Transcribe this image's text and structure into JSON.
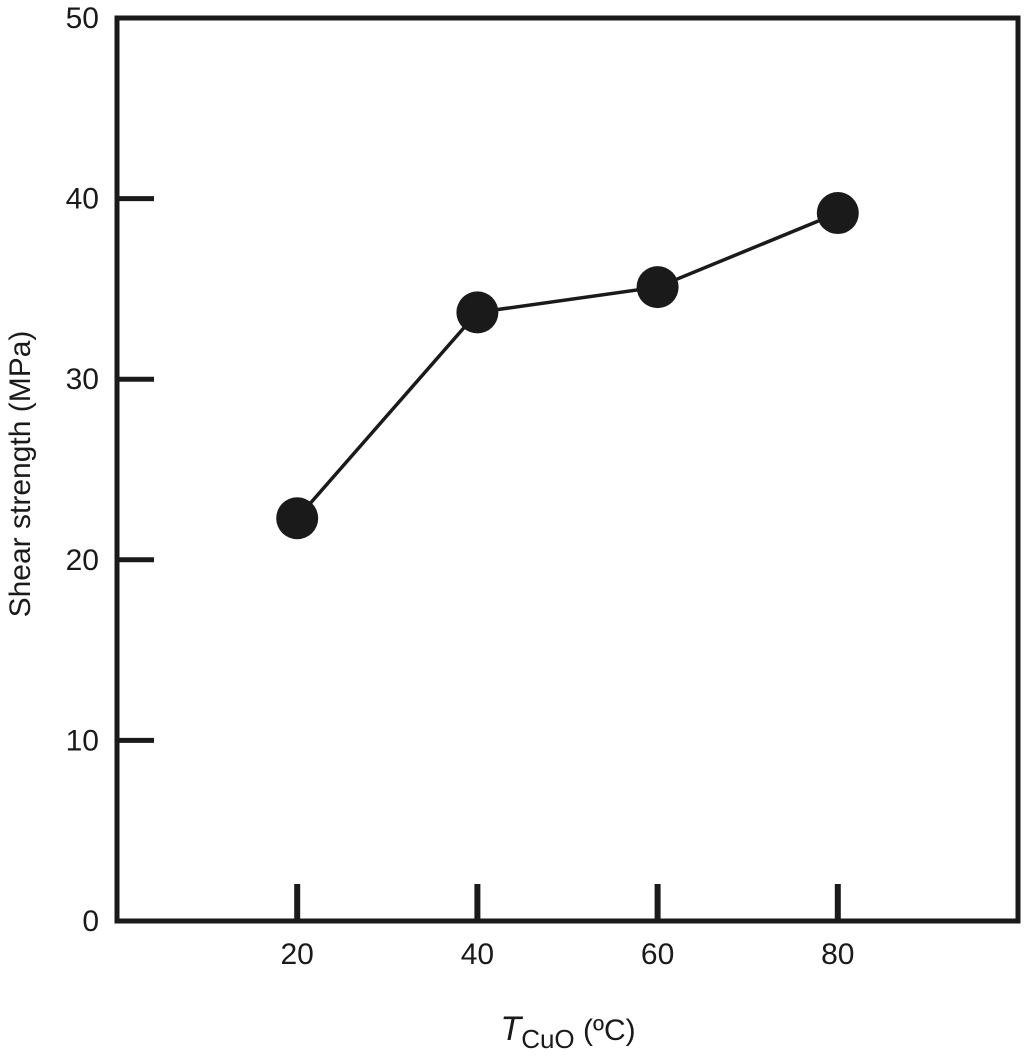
{
  "chart_data": {
    "type": "line",
    "title": "",
    "xlabel": {
      "main": "T",
      "subscript": "CuO",
      "unit": " (ºC)"
    },
    "ylabel": "Shear strength (MPa)",
    "x_ticks": [
      "20",
      "40",
      "60",
      "80"
    ],
    "y_ticks": [
      "0",
      "10",
      "20",
      "30",
      "40",
      "50"
    ],
    "xlim": [
      0,
      100
    ],
    "ylim": [
      0,
      50
    ],
    "grid": false,
    "series": [
      {
        "x": [
          20,
          40,
          60,
          80
        ],
        "y": [
          22.3,
          33.7,
          35.1,
          39.2
        ]
      }
    ],
    "colors": {
      "line": "#1a1a1a",
      "marker": "#1a1a1a",
      "axes": "#1a1a1a"
    }
  }
}
